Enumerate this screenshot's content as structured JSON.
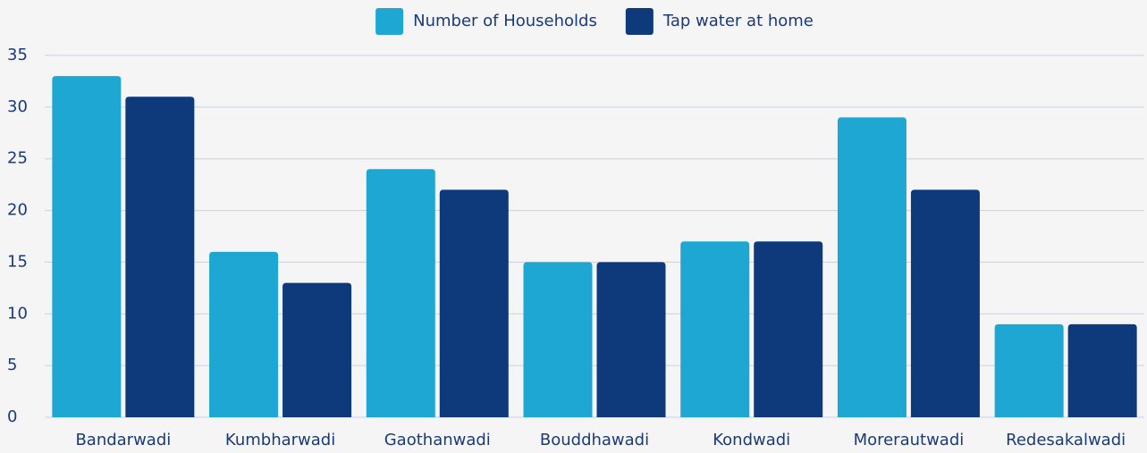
{
  "chart_data": {
    "type": "bar",
    "categories": [
      "Bandarwadi",
      "Kumbharwadi",
      "Gaothanwadi",
      "Bouddhawadi",
      "Kondwadi",
      "Morerautwadi",
      "Redesakalwadi"
    ],
    "series": [
      {
        "name": "Number of Households",
        "color": "#1ea7d3",
        "values": [
          33,
          16,
          24,
          15,
          17,
          29,
          9
        ]
      },
      {
        "name": "Tap water at home",
        "color": "#0e3a7b",
        "values": [
          31,
          13,
          22,
          15,
          17,
          22,
          9
        ]
      }
    ],
    "ylim": [
      0,
      35
    ],
    "yticks": [
      0,
      5,
      10,
      15,
      20,
      25,
      30,
      35
    ],
    "grid": true,
    "legend": "top"
  }
}
